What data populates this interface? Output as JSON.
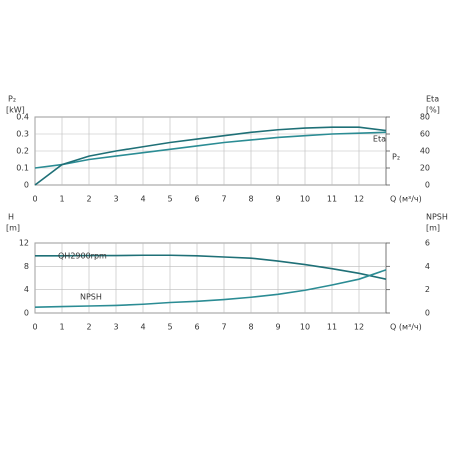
{
  "chart_data": [
    {
      "type": "line",
      "ylabel": "P₂",
      "yunit": "[kW]",
      "y2label": "Eta",
      "y2unit": "[%]",
      "xlabel": "Q (м³/ч)",
      "x": [
        0,
        1,
        2,
        3,
        4,
        5,
        6,
        7,
        8,
        9,
        10,
        11,
        12,
        13
      ],
      "xlim": [
        0,
        13
      ],
      "xticks": [
        0,
        1,
        2,
        3,
        4,
        5,
        6,
        7,
        8,
        9,
        10,
        11,
        12
      ],
      "ylim": [
        0,
        0.4
      ],
      "yticks": [
        0,
        0.1,
        0.2,
        0.3,
        0.4
      ],
      "y2lim": [
        0,
        80
      ],
      "y2ticks": [
        0,
        20,
        40,
        60,
        80
      ],
      "grid": true,
      "series": [
        {
          "name": "P₂",
          "color": "#2b8c94",
          "values": [
            0.1,
            0.12,
            0.15,
            0.17,
            0.19,
            0.21,
            0.23,
            0.25,
            0.265,
            0.28,
            0.29,
            0.3,
            0.305,
            0.31
          ]
        },
        {
          "name": "Eta",
          "color": "#1f7077",
          "axis": "y2",
          "values": [
            0,
            24,
            34,
            40,
            45,
            50,
            54,
            58,
            62,
            65,
            67,
            68,
            68,
            64
          ]
        }
      ]
    },
    {
      "type": "line",
      "ylabel": "H",
      "yunit": "[m]",
      "y2label": "NPSH",
      "y2unit": "[m]",
      "xlabel": "Q (м³/ч)",
      "x": [
        0,
        1,
        2,
        3,
        4,
        5,
        6,
        7,
        8,
        9,
        10,
        11,
        12,
        13
      ],
      "xlim": [
        0,
        13
      ],
      "xticks": [
        0,
        1,
        2,
        3,
        4,
        5,
        6,
        7,
        8,
        9,
        10,
        11,
        12
      ],
      "ylim": [
        0,
        12
      ],
      "yticks": [
        0,
        4,
        8,
        12
      ],
      "y2lim": [
        0,
        6
      ],
      "y2ticks": [
        0,
        2,
        4,
        6
      ],
      "grid": true,
      "series": [
        {
          "name": "QH2900rpm",
          "color": "#1f7077",
          "values": [
            9.8,
            9.8,
            9.85,
            9.85,
            9.9,
            9.9,
            9.8,
            9.6,
            9.4,
            8.9,
            8.3,
            7.6,
            6.8,
            5.8
          ]
        },
        {
          "name": "NPSH",
          "color": "#2b8c94",
          "axis": "y2",
          "values": [
            0.5,
            0.55,
            0.6,
            0.65,
            0.75,
            0.9,
            1.0,
            1.15,
            1.35,
            1.6,
            1.95,
            2.4,
            2.9,
            3.7
          ]
        }
      ]
    }
  ]
}
